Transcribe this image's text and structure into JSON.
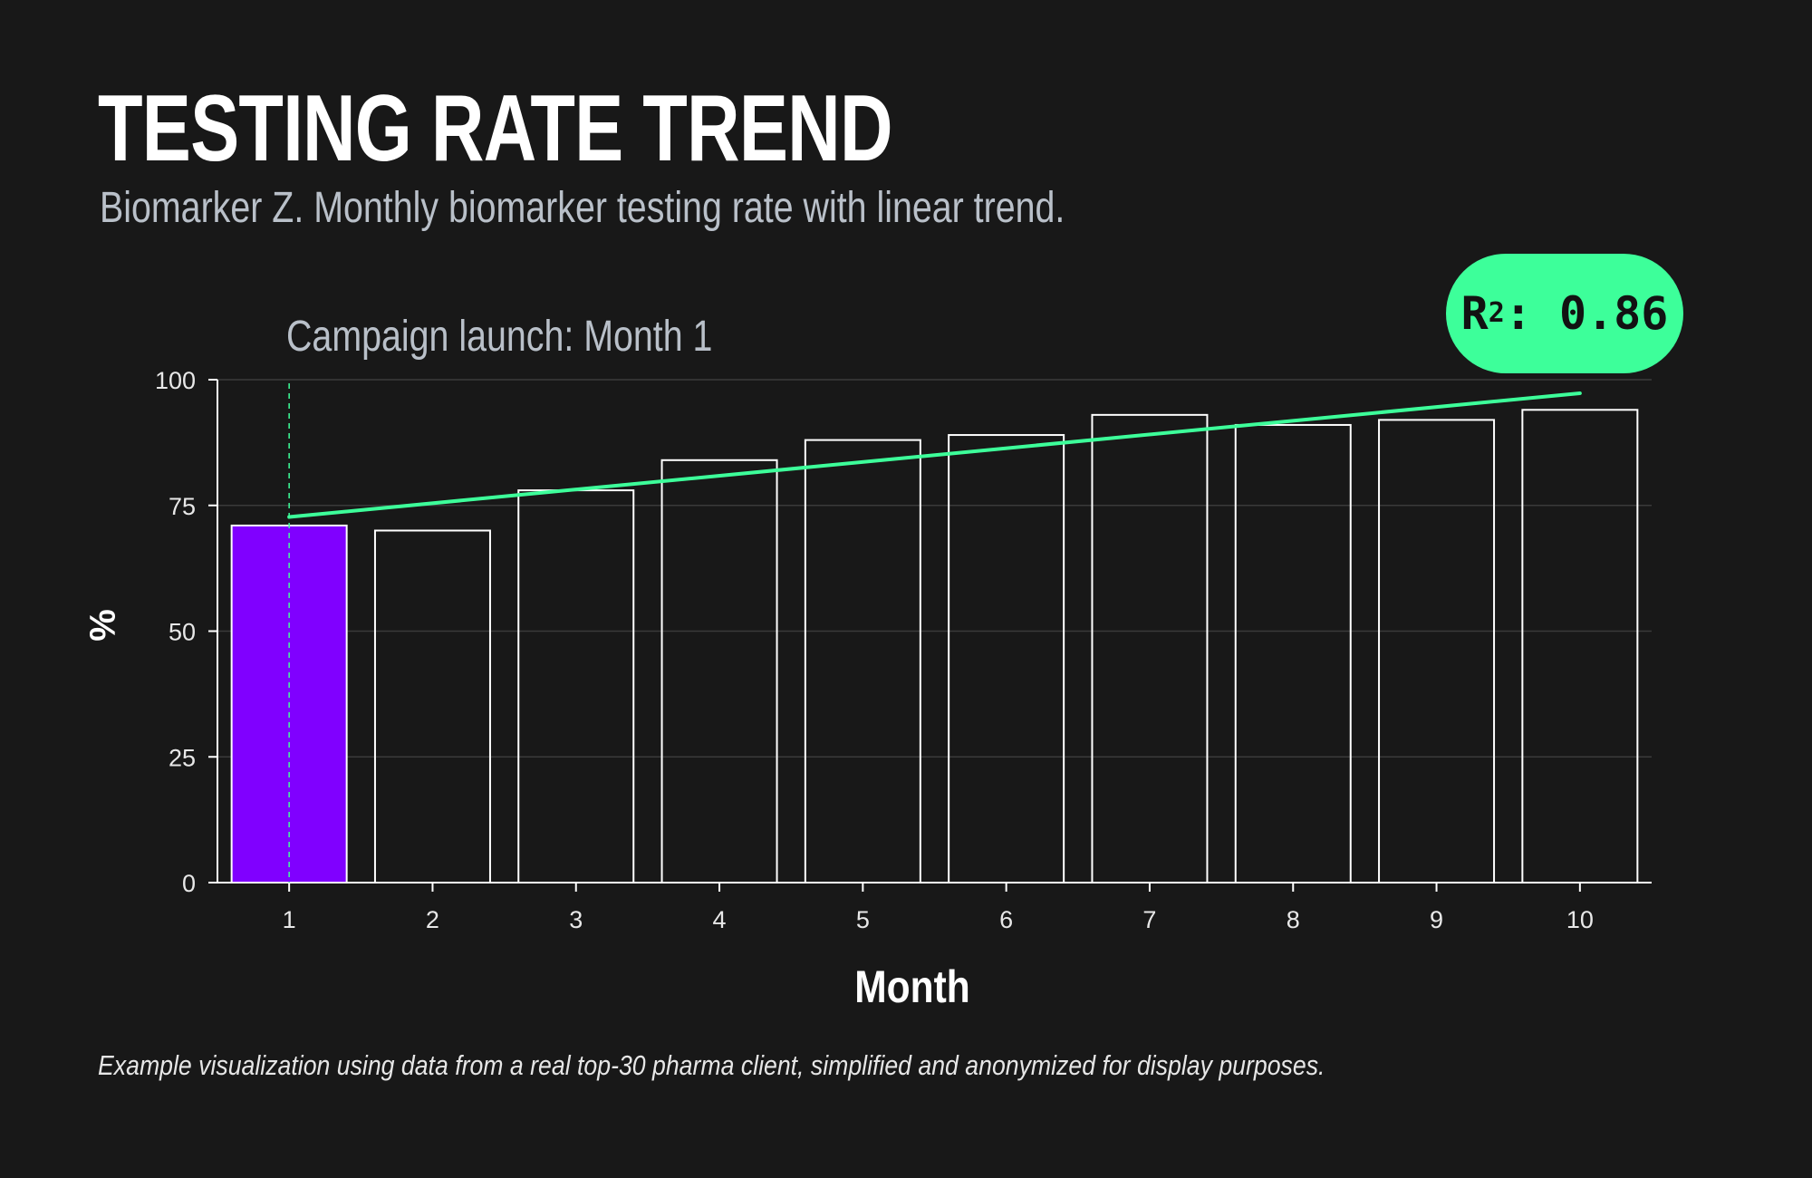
{
  "title": "TESTING RATE TREND",
  "subtitle": "Biomarker Z. Monthly biomarker testing rate with linear trend.",
  "r2_badge": {
    "label": "R",
    "superscript": "2",
    "value": ": 0.86"
  },
  "annotation": "Campaign launch: Month 1",
  "footnote": "Example visualization using data from a real top-30 pharma client, simplified and anonymized for display purposes.",
  "colors": {
    "background": "#181818",
    "highlight_bar": "#8000ff",
    "bar_outline": "#ffffff",
    "trend_line": "#3dff9a",
    "grid": "#3a3a3a"
  },
  "chart_data": {
    "type": "bar",
    "categories": [
      "1",
      "2",
      "3",
      "4",
      "5",
      "6",
      "7",
      "8",
      "9",
      "10"
    ],
    "values": [
      71,
      70,
      78,
      84,
      88,
      89,
      93,
      91,
      92,
      94
    ],
    "highlight_index": 0,
    "xlabel": "Month",
    "ylabel": "%",
    "ylim": [
      0,
      100
    ],
    "yticks": [
      0,
      25,
      50,
      75,
      100
    ],
    "grid": true,
    "trend_line": {
      "x_start": 1,
      "y_start": 72.7,
      "x_end": 10,
      "y_end": 97.3
    },
    "vertical_marker_x": 1
  }
}
